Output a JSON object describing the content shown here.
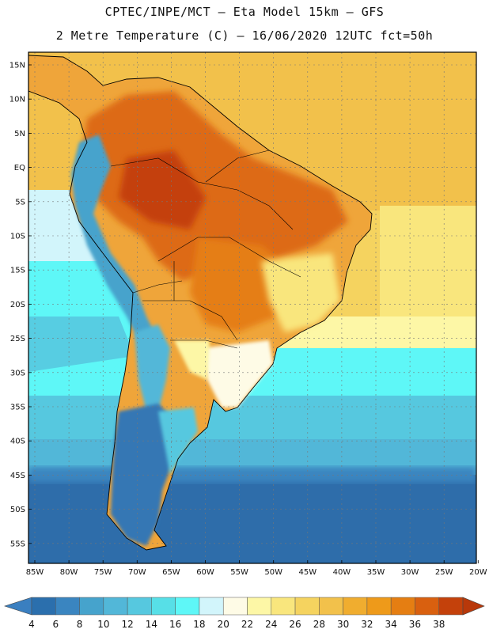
{
  "title_line1": "CPTEC/INPE/MCT –  Eta Model 15km – GFS",
  "title_line2": "2 Metre Temperature (C) – 16/06/2020 12UTC fct=50h",
  "lat_ticks": [
    "15N",
    "10N",
    "5N",
    "EQ",
    "5S",
    "10S",
    "15S",
    "20S",
    "25S",
    "30S",
    "35S",
    "40S",
    "45S",
    "50S",
    "55S"
  ],
  "lon_ticks": [
    "85W",
    "80W",
    "75W",
    "70W",
    "65W",
    "60W",
    "55W",
    "50W",
    "45W",
    "40W",
    "35W",
    "30W",
    "25W",
    "20W"
  ],
  "colorbar": {
    "labels": [
      "4",
      "6",
      "8",
      "10",
      "12",
      "14",
      "16",
      "18",
      "20",
      "22",
      "24",
      "26",
      "28",
      "30",
      "32",
      "34",
      "36",
      "38"
    ],
    "colors": [
      "#2b6fad",
      "#3a85c0",
      "#46a3cc",
      "#52b7d8",
      "#56c8df",
      "#57dfe7",
      "#5ef7f7",
      "#d2f5fb",
      "#fefbe6",
      "#fdf7a6",
      "#f9e67d",
      "#f5d35f",
      "#f2c14b",
      "#f0ad2f",
      "#ee9a1a",
      "#e57e12",
      "#d9600f",
      "#c4410b"
    ],
    "low_color": "#3a7fc0",
    "high_color": "#b8380a"
  },
  "legend_colors": {
    "ocean_south": "#2e6daa",
    "ocean_mid": "#4fd3e3",
    "ocean_cyan": "#5ef7f7",
    "warm_atlantic": "#f5d35f",
    "tropics_hot": "#dd6a12",
    "land_warm": "#efa53a",
    "patagonia": "#3477b4",
    "andes_cold": "#46a3cc"
  }
}
